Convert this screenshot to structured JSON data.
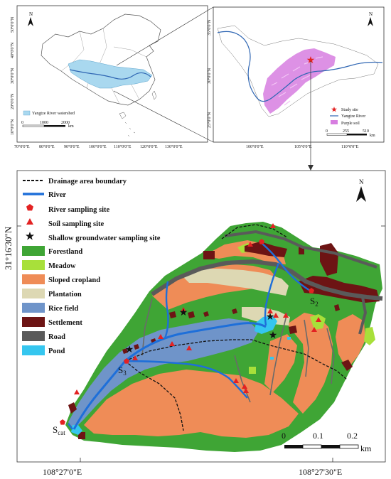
{
  "inset_china": {
    "lat_ticks": [
      "50°0'0\"N",
      "40°0'0\"N",
      "30°0'0\"N",
      "20°0'0\"N",
      "10°0'0\"N"
    ],
    "lon_ticks": [
      "70°0'0\"E",
      "80°0'0\"E",
      "90°0'0\"E",
      "100°0'0\"E",
      "110°0'0\"E",
      "120°0'0\"E",
      "130°0'0\"E"
    ],
    "north": "N",
    "legend": "Yangtze River watershed",
    "scale": [
      "0",
      "1000",
      "2000"
    ],
    "scale_unit": "km",
    "colors": {
      "watershed": "#a9d8ef",
      "river": "#2f66b3"
    }
  },
  "inset_basin": {
    "lat_ticks": [
      "35°0'0\"N",
      "30°0'0\"N",
      "25°0'0\"N"
    ],
    "lon_ticks": [
      "100°0'0\"E",
      "105°0'0\"E",
      "110°0'0\"E"
    ],
    "north": "N",
    "legend": {
      "site": "Study site",
      "river": "Yangtze River",
      "soil": "Purple soil"
    },
    "scale": [
      "0",
      "255",
      "510"
    ],
    "scale_unit": "km",
    "colors": {
      "purple_soil": "#d77ee0",
      "site": "#e32222"
    }
  },
  "main_map": {
    "lat_label": "31°16'30\"N",
    "lon_labels": [
      "108°27'0\"E",
      "108°27'30\"E"
    ],
    "north": "N",
    "scale": [
      "0",
      "0.1",
      "0.2"
    ],
    "scale_unit": "km",
    "sites": {
      "s2": "S",
      "s2_sub": "2",
      "s3": "S",
      "s3_sub": "3",
      "scat": "S",
      "scat_sub": "cat"
    },
    "legend": [
      {
        "label": "Drainage area boundary",
        "symbol": "dash"
      },
      {
        "label": "River",
        "symbol": "river"
      },
      {
        "label": "River sampling site",
        "symbol": "pentagon"
      },
      {
        "label": "Soil sampling site",
        "symbol": "triangle"
      },
      {
        "label": "Shallow groundwater sampling site",
        "symbol": "star"
      },
      {
        "label": "Forestland",
        "color": "#3fa535"
      },
      {
        "label": "Meadow",
        "color": "#a8e03a"
      },
      {
        "label": "Sloped cropland",
        "color": "#ef8c57"
      },
      {
        "label": "Plantation",
        "color": "#ddd8b3"
      },
      {
        "label": "Rice field",
        "color": "#6f94c9"
      },
      {
        "label": "Settlement",
        "color": "#6d1414"
      },
      {
        "label": "Road",
        "color": "#5a5a5a"
      },
      {
        "label": "Pond",
        "color": "#35c6ef"
      }
    ]
  }
}
